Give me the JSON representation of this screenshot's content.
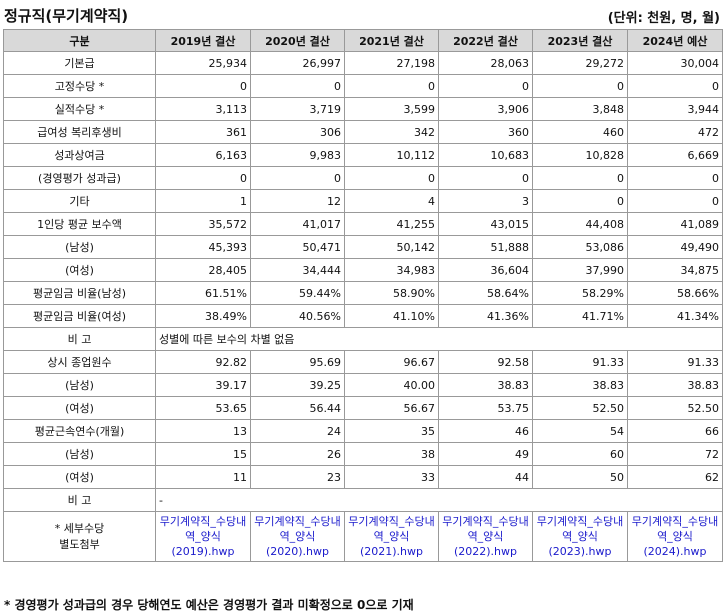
{
  "title": "정규직(무기계약직)",
  "unit": "(단위: 천원, 명, 월)",
  "headers": [
    "구분",
    "2019년 결산",
    "2020년 결산",
    "2021년 결산",
    "2022년 결산",
    "2023년 결산",
    "2024년 예산"
  ],
  "rows": [
    {
      "label": "기본급",
      "values": [
        "25,934",
        "26,997",
        "27,198",
        "28,063",
        "29,272",
        "30,004"
      ]
    },
    {
      "label": "고정수당 *",
      "values": [
        "0",
        "0",
        "0",
        "0",
        "0",
        "0"
      ]
    },
    {
      "label": "실적수당 *",
      "values": [
        "3,113",
        "3,719",
        "3,599",
        "3,906",
        "3,848",
        "3,944"
      ]
    },
    {
      "label": "급여성 복리후생비",
      "values": [
        "361",
        "306",
        "342",
        "360",
        "460",
        "472"
      ]
    },
    {
      "label": "성과상여금",
      "values": [
        "6,163",
        "9,983",
        "10,112",
        "10,683",
        "10,828",
        "6,669"
      ]
    },
    {
      "label": "(경영평가 성과급)",
      "values": [
        "0",
        "0",
        "0",
        "0",
        "0",
        "0"
      ]
    },
    {
      "label": "기타",
      "values": [
        "1",
        "12",
        "4",
        "3",
        "0",
        "0"
      ]
    },
    {
      "label": "1인당 평균 보수액",
      "values": [
        "35,572",
        "41,017",
        "41,255",
        "43,015",
        "44,408",
        "41,089"
      ]
    },
    {
      "label": "(남성)",
      "values": [
        "45,393",
        "50,471",
        "50,142",
        "51,888",
        "53,086",
        "49,490"
      ]
    },
    {
      "label": "(여성)",
      "values": [
        "28,405",
        "34,444",
        "34,983",
        "36,604",
        "37,990",
        "34,875"
      ]
    },
    {
      "label": "평균임금 비율(남성)",
      "values": [
        "61.51%",
        "59.44%",
        "58.90%",
        "58.64%",
        "58.29%",
        "58.66%"
      ]
    },
    {
      "label": "평균임금 비율(여성)",
      "values": [
        "38.49%",
        "40.56%",
        "41.10%",
        "41.36%",
        "41.71%",
        "41.34%"
      ]
    }
  ],
  "note_row1": {
    "label": "비 고",
    "text": "성별에 따른 보수의 차별 없음"
  },
  "rows2": [
    {
      "label": "상시 종업원수",
      "values": [
        "92.82",
        "95.69",
        "96.67",
        "92.58",
        "91.33",
        "91.33"
      ]
    },
    {
      "label": "(남성)",
      "values": [
        "39.17",
        "39.25",
        "40.00",
        "38.83",
        "38.83",
        "38.83"
      ]
    },
    {
      "label": "(여성)",
      "values": [
        "53.65",
        "56.44",
        "56.67",
        "53.75",
        "52.50",
        "52.50"
      ]
    },
    {
      "label": "평균근속연수(개월)",
      "values": [
        "13",
        "24",
        "35",
        "46",
        "54",
        "66"
      ]
    },
    {
      "label": "(남성)",
      "values": [
        "15",
        "26",
        "38",
        "49",
        "60",
        "72"
      ]
    },
    {
      "label": "(여성)",
      "values": [
        "11",
        "23",
        "33",
        "44",
        "50",
        "62"
      ]
    }
  ],
  "note_row2": {
    "label": "비 고",
    "text": "-"
  },
  "attach": {
    "label_line1": "* 세부수당",
    "label_line2": "별도첨부",
    "files": [
      "무기계약직_수당내역_양식(2019).hwp",
      "무기계약직_수당내역_양식(2020).hwp",
      "무기계약직_수당내역_양식(2021).hwp",
      "무기계약직_수당내역_양식(2022).hwp",
      "무기계약직_수당내역_양식(2023).hwp",
      "무기계약직_수당내역_양식(2024).hwp"
    ]
  },
  "footnote": "* 경영평가 성과급의 경우 당해연도 예산은 경영평가 결과 미확정으로 0으로 기재"
}
